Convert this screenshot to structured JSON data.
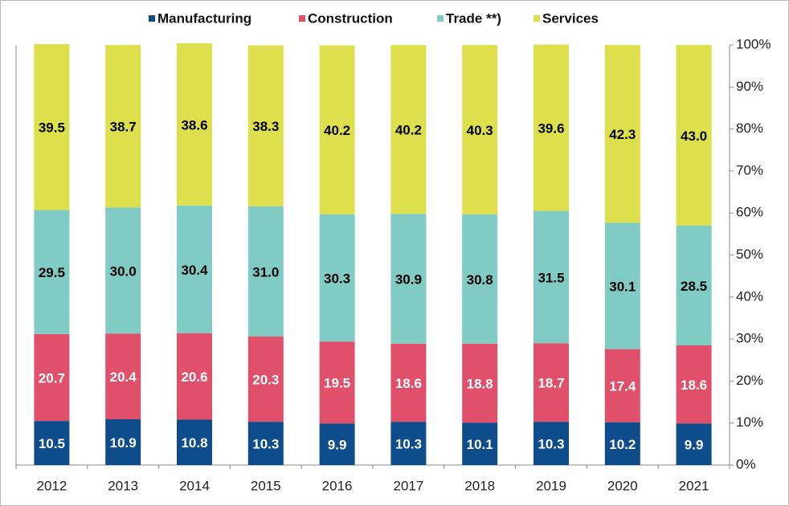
{
  "chart_data": {
    "type": "stacked_bar",
    "categories": [
      "2012",
      "2013",
      "2014",
      "2015",
      "2016",
      "2017",
      "2018",
      "2019",
      "2020",
      "2021"
    ],
    "series": [
      {
        "name": "Manufacturing",
        "color": "#0f4c8c",
        "values": [
          10.5,
          10.9,
          10.8,
          10.3,
          9.9,
          10.3,
          10.1,
          10.3,
          10.2,
          9.9
        ],
        "value_labels": [
          "10.5",
          "10.9",
          "10.8",
          "10.3",
          "9.9",
          "10.3",
          "10.1",
          "10.3",
          "10.2",
          "9.9"
        ]
      },
      {
        "name": "Construction",
        "color": "#e0506a",
        "values": [
          20.7,
          20.4,
          20.6,
          20.3,
          19.5,
          18.6,
          18.8,
          18.7,
          17.4,
          18.6
        ],
        "value_labels": [
          "20.7",
          "20.4",
          "20.6",
          "20.3",
          "19.5",
          "18.6",
          "18.8",
          "18.7",
          "17.4",
          "18.6"
        ]
      },
      {
        "name": "Trade **)",
        "color": "#80cbc4",
        "values": [
          29.5,
          30.0,
          30.4,
          31.0,
          30.3,
          30.9,
          30.8,
          31.5,
          30.1,
          28.5
        ],
        "value_labels": [
          "29.5",
          "30.0",
          "30.4",
          "31.0",
          "30.3",
          "30.9",
          "30.8",
          "31.5",
          "30.1",
          "28.5"
        ]
      },
      {
        "name": "Services",
        "color": "#dde04c",
        "values": [
          39.5,
          38.7,
          38.6,
          38.3,
          40.2,
          40.2,
          40.3,
          39.6,
          42.3,
          43.0
        ],
        "value_labels": [
          "39.5",
          "38.7",
          "38.6",
          "38.3",
          "40.2",
          "40.2",
          "40.3",
          "39.6",
          "42.3",
          "43.0"
        ]
      }
    ],
    "ylim": [
      0,
      100
    ],
    "yticks": [
      {
        "value": 0,
        "label": "0%"
      },
      {
        "value": 10,
        "label": "10%"
      },
      {
        "value": 20,
        "label": "20%"
      },
      {
        "value": 30,
        "label": "30%"
      },
      {
        "value": 40,
        "label": "40%"
      },
      {
        "value": 50,
        "label": "50%"
      },
      {
        "value": 60,
        "label": "60%"
      },
      {
        "value": 70,
        "label": "70%"
      },
      {
        "value": 80,
        "label": "80%"
      },
      {
        "value": 90,
        "label": "90%"
      },
      {
        "value": 100,
        "label": "100%"
      }
    ],
    "y_axis_side": "right",
    "legend": "top"
  }
}
